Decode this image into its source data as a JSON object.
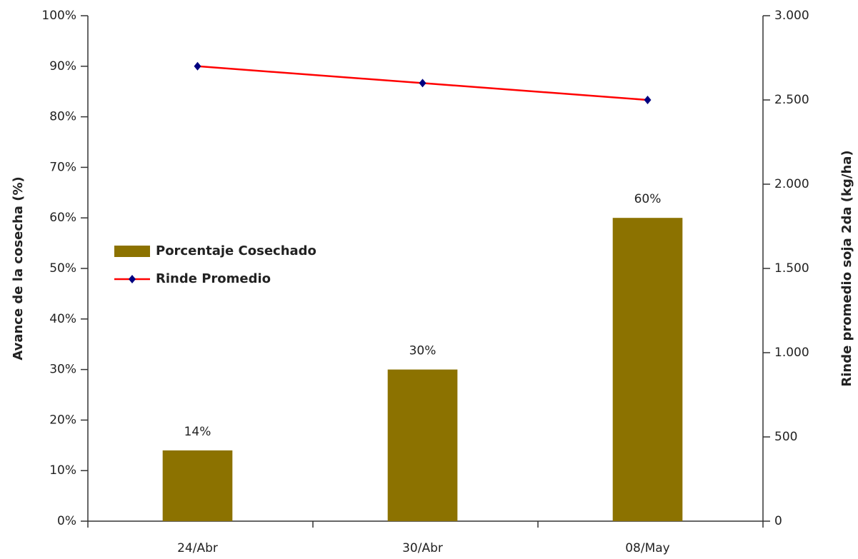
{
  "chart_data": {
    "type": "combo",
    "categories": [
      "24/Abr",
      "30/Abr",
      "08/May"
    ],
    "series": [
      {
        "name": "Porcentaje Cosechado",
        "type": "bar",
        "color": "#8c7200",
        "values": [
          14,
          30,
          60
        ],
        "value_labels": [
          "14%",
          "30%",
          "60%"
        ]
      },
      {
        "name": "Rinde Promedio",
        "type": "line",
        "color": "#ff0000",
        "marker_color": "#000080",
        "axis": "y2",
        "values": [
          2700,
          2600,
          2500
        ]
      }
    ],
    "ylabel": "Avance de la cosecha (%)",
    "y2label": "Rinde promedio soja 2da (kg/ha)",
    "ylim": [
      0,
      100
    ],
    "yticks": [
      {
        "value": 0,
        "label": "0%"
      },
      {
        "value": 10,
        "label": "10%"
      },
      {
        "value": 20,
        "label": "20%"
      },
      {
        "value": 30,
        "label": "30%"
      },
      {
        "value": 40,
        "label": "40%"
      },
      {
        "value": 50,
        "label": "50%"
      },
      {
        "value": 60,
        "label": "60%"
      },
      {
        "value": 70,
        "label": "70%"
      },
      {
        "value": 80,
        "label": "80%"
      },
      {
        "value": 90,
        "label": "90%"
      },
      {
        "value": 100,
        "label": "100%"
      }
    ],
    "y2lim": [
      0,
      3000
    ],
    "y2ticks": [
      0,
      500,
      {
        "value": 1000,
        "label": "1.000"
      },
      {
        "value": 1500,
        "label": "1.500"
      },
      {
        "value": 2000,
        "label": "2.000"
      },
      {
        "value": 2500,
        "label": "2.500"
      },
      {
        "value": 3000,
        "label": "3.000"
      }
    ],
    "grid": false
  }
}
